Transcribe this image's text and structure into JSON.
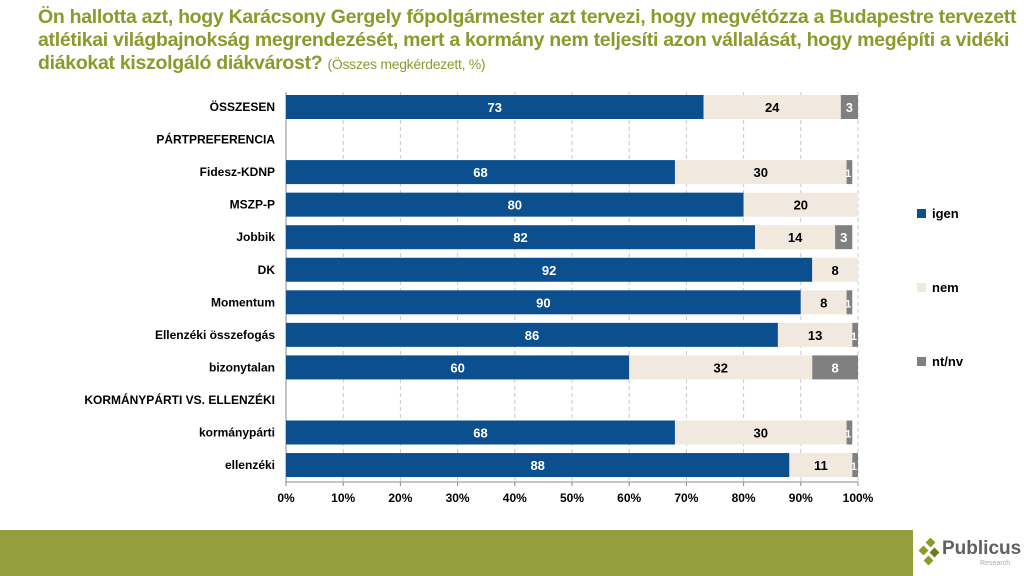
{
  "title": {
    "question": "Ön hallotta azt, hogy Karácsony Gergely főpolgármester azt tervezi, hogy megvétózza a Budapestre tervezett atlétikai világbajnokság megrendezését, mert a kormány nem teljesíti azon vállalását, hogy megépíti a vidéki diákokat kiszolgáló diákvárost?",
    "subtitle": "(Összes megkérdezett, %)"
  },
  "chart_data": {
    "type": "bar",
    "orientation": "horizontal-stacked-100",
    "categories": [
      "ÖSSZESEN",
      "PÁRTPREFERENCIA",
      "Fidesz-KDNP",
      "MSZP-P",
      "Jobbik",
      "DK",
      "Momentum",
      "Ellenzéki összefogás",
      "bizonytalan",
      "KORMÁNYPÁRTI VS. ELLENZÉKI",
      "kormánypárti",
      "ellenzéki"
    ],
    "series": [
      {
        "name": "igen",
        "color": "#0b4f8f",
        "values": [
          73,
          null,
          68,
          80,
          82,
          92,
          90,
          86,
          60,
          null,
          68,
          88
        ]
      },
      {
        "name": "nem",
        "color": "#f2e9de",
        "values": [
          24,
          null,
          30,
          20,
          14,
          8,
          8,
          13,
          32,
          null,
          30,
          11
        ]
      },
      {
        "name": "nt/nv",
        "color": "#808080",
        "values": [
          3,
          null,
          1,
          0,
          3,
          0,
          1,
          1,
          8,
          null,
          1,
          1
        ]
      }
    ],
    "xlim": [
      0,
      100
    ],
    "xticks": [
      "0%",
      "10%",
      "20%",
      "30%",
      "40%",
      "50%",
      "60%",
      "70%",
      "80%",
      "90%",
      "100%"
    ],
    "grid": "vertical dashed",
    "legend": "right"
  },
  "logo": {
    "name": "Publicus",
    "sub": "Research"
  },
  "colors": {
    "title": "#8c9a2b",
    "footer": "#959d3d"
  }
}
